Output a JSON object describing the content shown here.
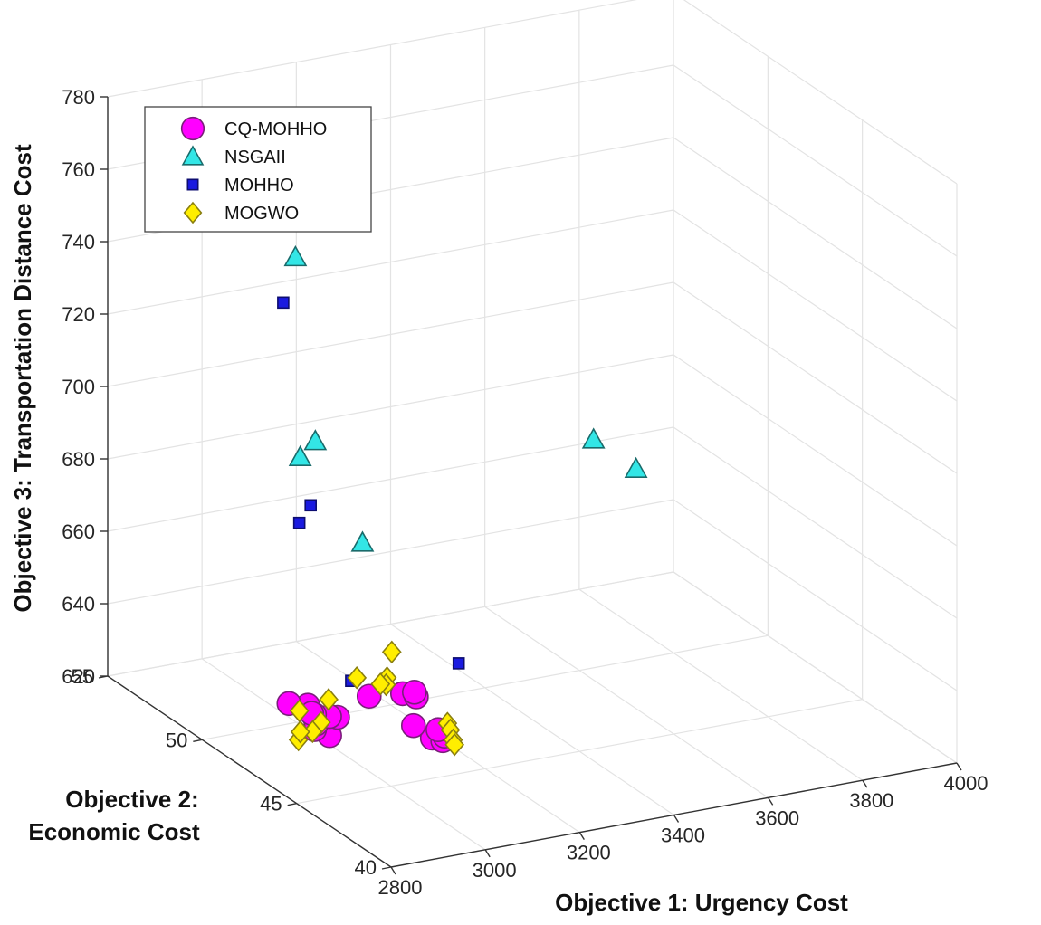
{
  "chart_data": {
    "type": "scatter",
    "dimensions": 3,
    "title": "",
    "xlabel": "Objective 1: Urgency Cost",
    "ylabel_line1": "Objective 2:",
    "ylabel_line2": "Economic Cost",
    "zlabel": "Objective 3: Transportation Distance Cost",
    "xlim": [
      2800,
      4000
    ],
    "ylim": [
      40,
      55
    ],
    "zlim": [
      620,
      780
    ],
    "xticks": [
      "2800",
      "3000",
      "3200",
      "3400",
      "3600",
      "3800",
      "4000"
    ],
    "yticks": [
      "40",
      "45",
      "50",
      "55"
    ],
    "zticks": [
      "620",
      "640",
      "660",
      "680",
      "700",
      "720",
      "740",
      "760",
      "780"
    ],
    "grid": true,
    "legend_position": "top-left",
    "series": [
      {
        "name": "CQ-MOHHO",
        "marker": "circle",
        "color": "#ff00ff",
        "edge_color": "#7a1f7a",
        "points": [
          [
            2850,
            44.5,
            639.3
          ],
          [
            2870,
            45.8,
            635.9
          ],
          [
            2900,
            46.6,
            636.2
          ],
          [
            2920,
            47.4,
            635.8
          ],
          [
            2900,
            47.9,
            635.0
          ],
          [
            2870,
            45.7,
            637.8
          ],
          [
            2955,
            46.7,
            634.1
          ],
          [
            2950,
            47.0,
            633.4
          ],
          [
            2950,
            47.8,
            631.1
          ],
          [
            2952,
            48.0,
            630.7
          ],
          [
            3090,
            48.4,
            630.7
          ],
          [
            3145,
            48.0,
            631.5
          ],
          [
            3150,
            47.4,
            632.6
          ],
          [
            3170,
            48.0,
            631.3
          ],
          [
            3100,
            45.3,
            629.8
          ],
          [
            3110,
            45.0,
            629.9
          ],
          [
            3130,
            45.4,
            629.3
          ],
          [
            3140,
            46.0,
            628.7
          ],
          [
            3120,
            46.8,
            627.5
          ]
        ]
      },
      {
        "name": "NSGAII",
        "marker": "triangle",
        "color": "#33e6e6",
        "edge_color": "#1a6b6b",
        "points": [
          [
            3070,
            51.8,
            740.5
          ],
          [
            3060,
            50.5,
            694.5
          ],
          [
            3000,
            49.8,
            694.0
          ],
          [
            3080,
            48.5,
            673.0
          ],
          [
            3550,
            48.0,
            692.0
          ],
          [
            3620,
            47.5,
            684.0
          ]
        ]
      },
      {
        "name": "MOHHO",
        "marker": "square",
        "color": "#1a1ae0",
        "edge_color": "#0d0d70",
        "points": [
          [
            3000,
            50.7,
            733.5
          ],
          [
            2950,
            48.0,
            688.2
          ],
          [
            2970,
            49.1,
            679.0
          ],
          [
            3100,
            49.6,
            630.5
          ],
          [
            3300,
            48.9,
            633.0
          ]
        ]
      },
      {
        "name": "MOGWO",
        "marker": "diamond",
        "color": "#ffee00",
        "edge_color": "#8a7f10",
        "points": [
          [
            2900,
            45.8,
            643.5
          ],
          [
            2880,
            45.7,
            638.0
          ],
          [
            2870,
            45.9,
            635.0
          ],
          [
            2860,
            46.4,
            631.2
          ],
          [
            2880,
            46.8,
            631.5
          ],
          [
            2910,
            47.6,
            633.8
          ],
          [
            3110,
            47.7,
            644.9
          ],
          [
            3120,
            48.2,
            635.8
          ],
          [
            3110,
            48.0,
            634.8
          ],
          [
            3100,
            49.3,
            632.4
          ],
          [
            3130,
            48.8,
            631.7
          ],
          [
            3160,
            46.0,
            630.0
          ],
          [
            3150,
            45.6,
            629.8
          ],
          [
            3140,
            45.2,
            628.7
          ],
          [
            3135,
            45.0,
            628.2
          ]
        ]
      }
    ]
  }
}
